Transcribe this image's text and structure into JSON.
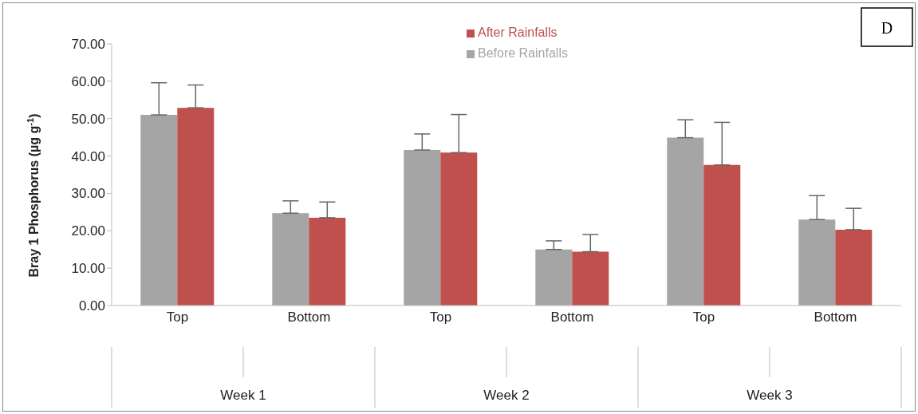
{
  "chart_data": {
    "type": "bar",
    "title": "D",
    "ylabel": "Bray 1 Phosphorus (µg g$^{-1}$)",
    "categories": [
      "Top",
      "Bottom",
      "Top",
      "Bottom",
      "Top",
      "Bottom"
    ],
    "annotations": [
      "Week 1",
      "Week 2",
      "Week 3"
    ],
    "series": [
      {
        "name": "Before Rainfalls",
        "color": "#a5a5a5",
        "values": [
          51.0,
          24.7,
          41.6,
          15.0,
          44.9,
          23.0
        ],
        "errors": [
          [
            51.0,
            59.6
          ],
          [
            24.7,
            28.0
          ],
          [
            41.6,
            45.9
          ],
          [
            15.0,
            17.3
          ],
          [
            44.9,
            49.7
          ],
          [
            23.0,
            29.4
          ]
        ]
      },
      {
        "name": "After Rainfalls",
        "color": "#c0504d",
        "values": [
          52.9,
          23.5,
          40.9,
          14.4,
          37.6,
          20.3
        ],
        "errors": [
          [
            52.9,
            59.0
          ],
          [
            23.5,
            27.7
          ],
          [
            40.9,
            51.1
          ],
          [
            14.4,
            19.0
          ],
          [
            37.6,
            49.0
          ],
          [
            20.3,
            26.0
          ]
        ]
      }
    ],
    "ylim": [
      0,
      70
    ],
    "yticks": [
      {
        "value": 0,
        "label": "0.00"
      },
      {
        "value": 10,
        "label": "10.00"
      },
      {
        "value": 20,
        "label": "20.00"
      },
      {
        "value": 30,
        "label": "30.00"
      },
      {
        "value": 40,
        "label": "40.00"
      },
      {
        "value": 50,
        "label": "50.00"
      },
      {
        "value": 60,
        "label": "60.00"
      },
      {
        "value": 70,
        "label": "70.00"
      }
    ],
    "grid": false,
    "legend": "top"
  }
}
